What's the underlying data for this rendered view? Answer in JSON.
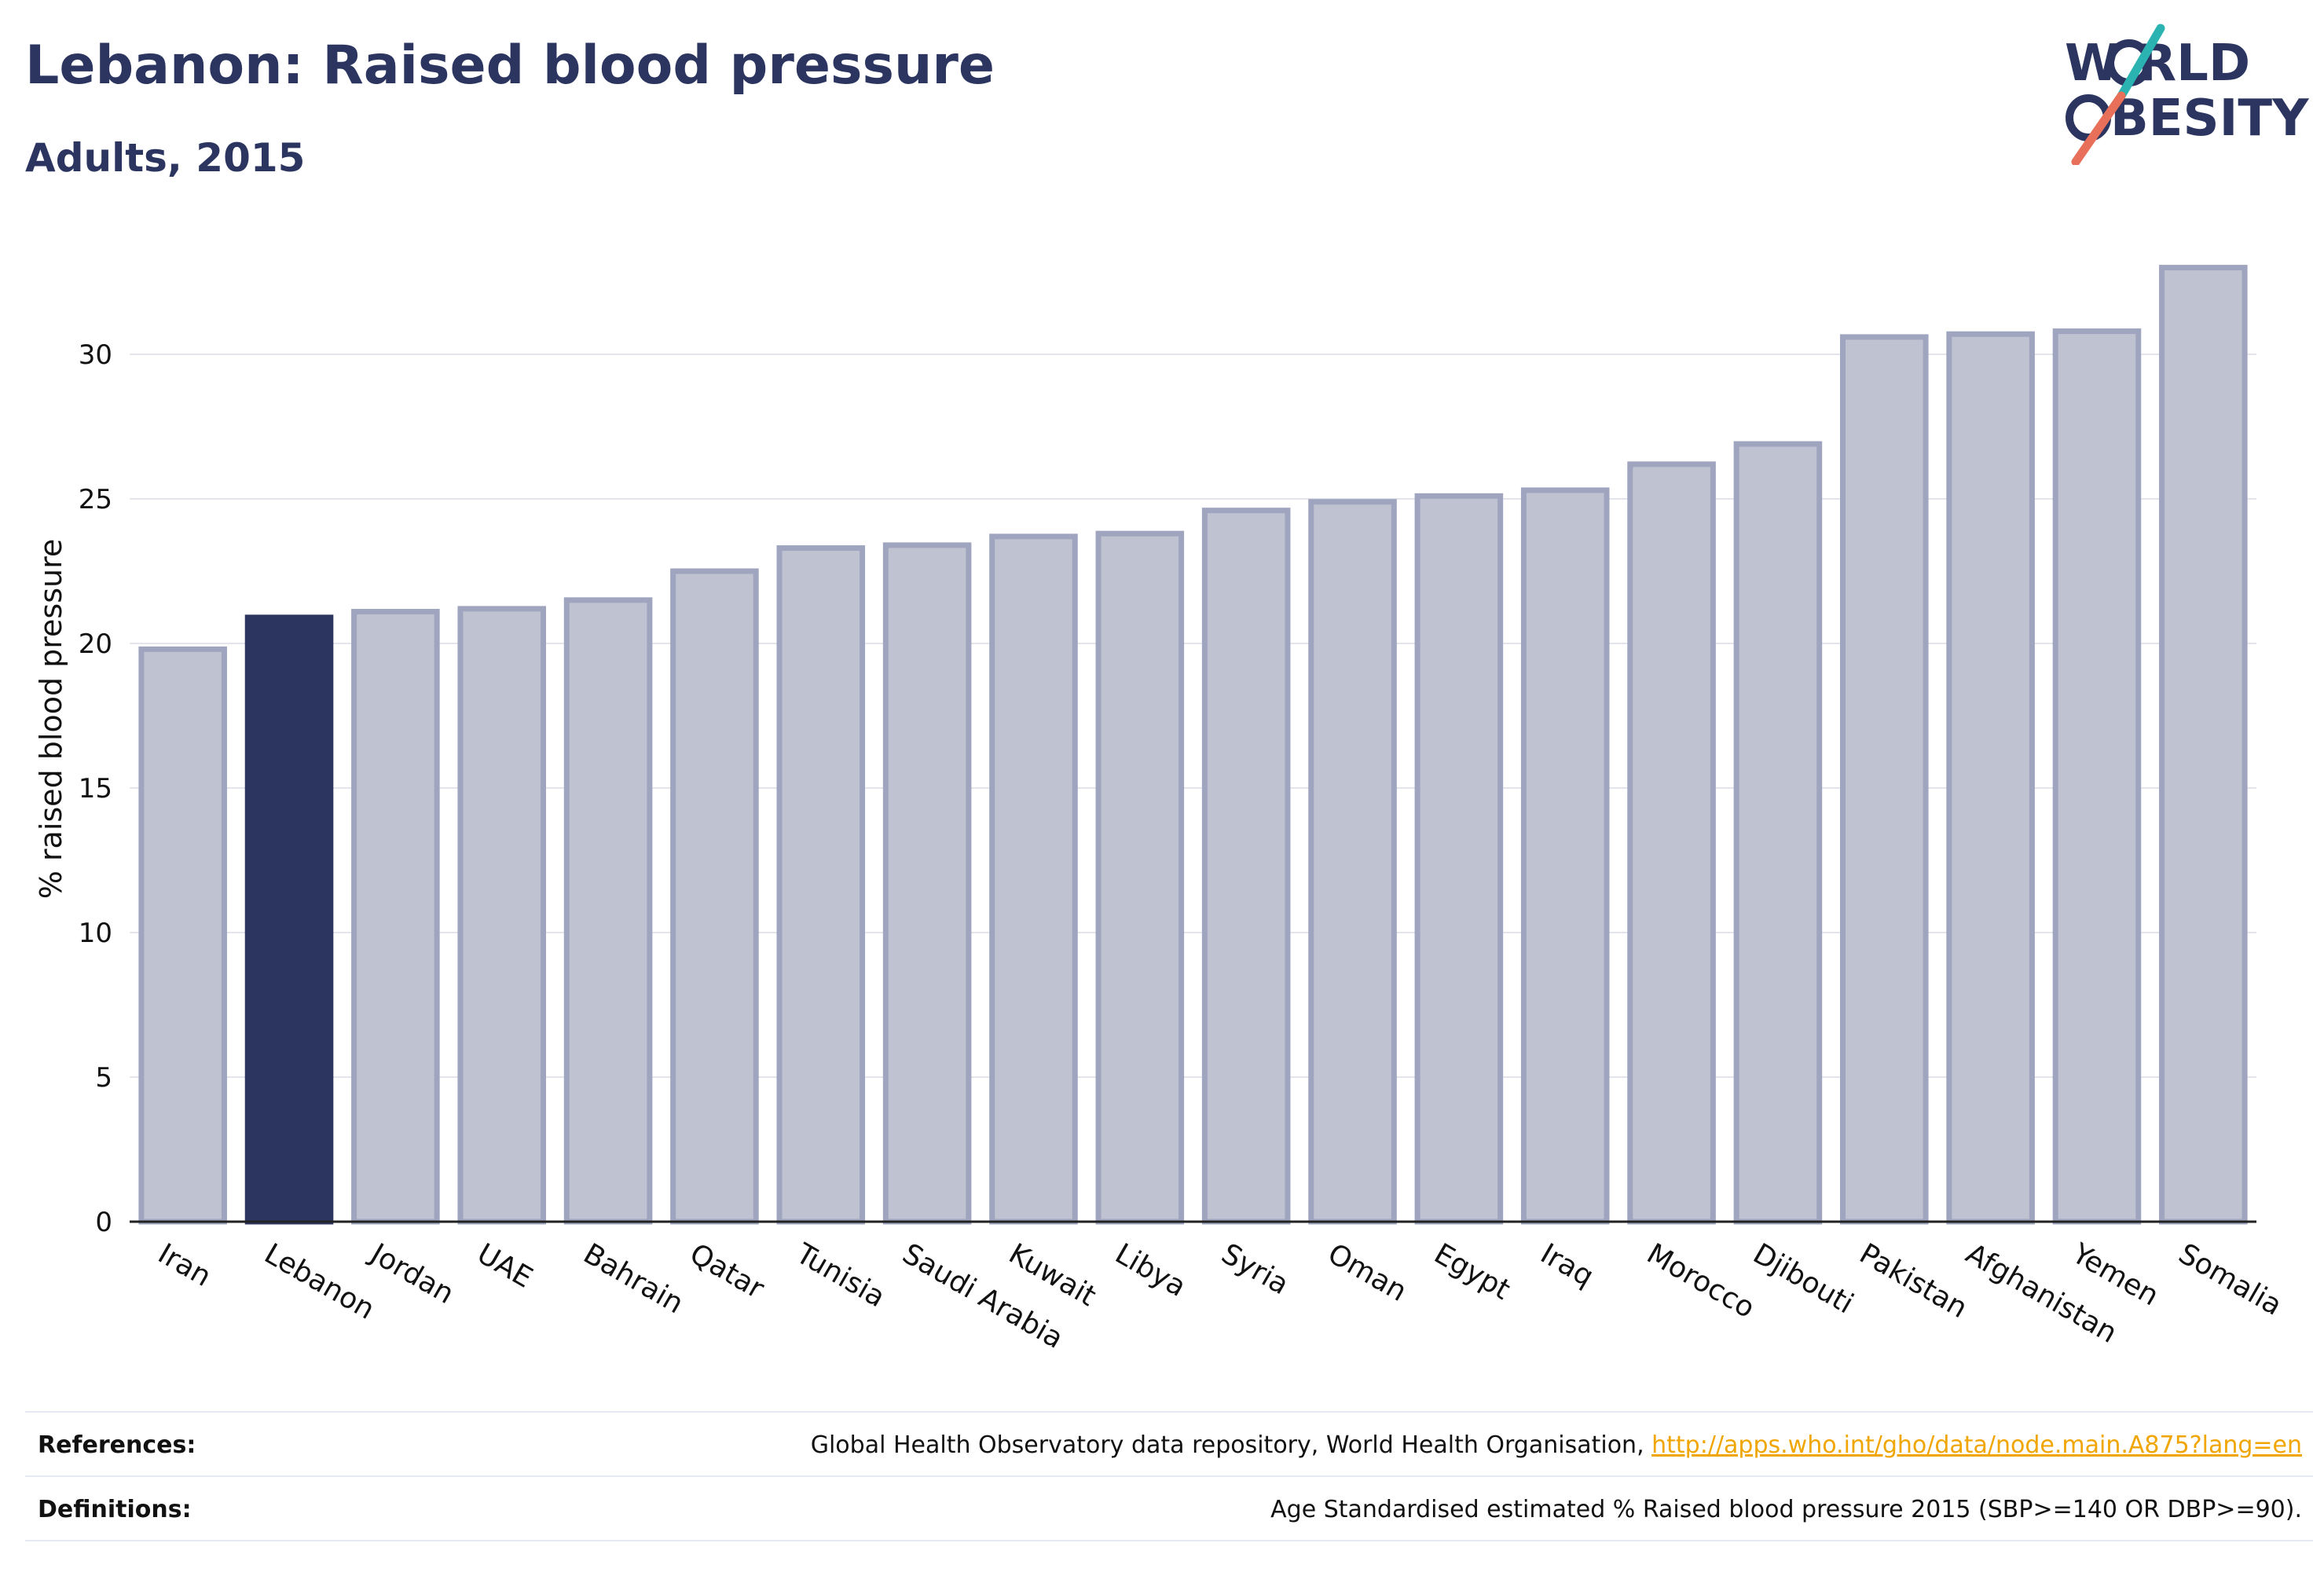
{
  "header": {
    "title": "Lebanon: Raised blood pressure",
    "subtitle": "Adults, 2015"
  },
  "logo": {
    "line1": "W RLD",
    "line2": "BESITY",
    "slash_teal": "#2bb3b1",
    "slash_coral": "#e8705b"
  },
  "chart_data": {
    "type": "bar",
    "ylabel": "% raised blood pressure",
    "xlabel": "",
    "ylim": [
      0,
      34
    ],
    "yticks": [
      0,
      5,
      10,
      15,
      20,
      25,
      30
    ],
    "grid": true,
    "highlight": "Lebanon",
    "colors": {
      "bar": "#bfc2d0",
      "bar_edge": "#9fa5bf",
      "highlight": "#2b3560"
    },
    "categories": [
      "Iran",
      "Lebanon",
      "Jordan",
      "UAE",
      "Bahrain",
      "Qatar",
      "Tunisia",
      "Saudi Arabia",
      "Kuwait",
      "Libya",
      "Syria",
      "Oman",
      "Egypt",
      "Iraq",
      "Morocco",
      "Djibouti",
      "Pakistan",
      "Afghanistan",
      "Yemen",
      "Somalia"
    ],
    "values": [
      19.8,
      20.9,
      21.1,
      21.2,
      21.5,
      22.5,
      23.3,
      23.4,
      23.7,
      23.8,
      24.6,
      24.9,
      25.1,
      25.3,
      26.2,
      26.9,
      30.6,
      30.7,
      30.8,
      33.0
    ]
  },
  "footer": {
    "references_label": "References:",
    "references_text": "Global Health Observatory data repository, World Health Organisation, ",
    "references_link": "http://apps.who.int/gho/data/node.main.A875?lang=en",
    "definitions_label": "Definitions:",
    "definitions_text": "Age Standardised estimated % Raised blood pressure 2015 (SBP>=140 OR DBP>=90)."
  }
}
